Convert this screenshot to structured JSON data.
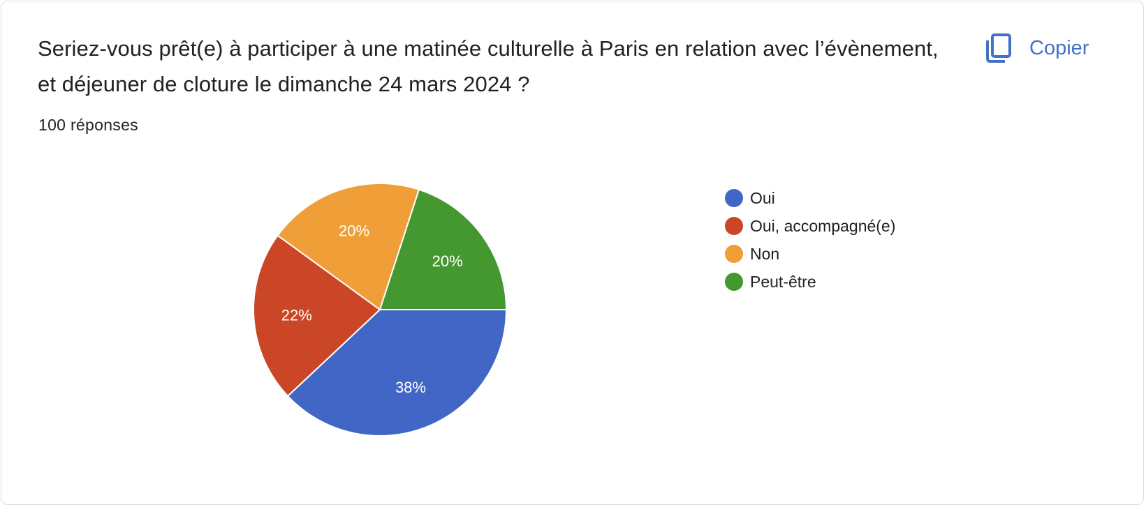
{
  "question": "Seriez-vous prêt(e) à participer à une matinée culturelle à Paris en relation avec l’évènement, et déjeuner de cloture le dimanche 24 mars 2024 ?",
  "response_count": "100 réponses",
  "copy_button": {
    "label": "Copier",
    "icon": "copy-icon"
  },
  "colors": {
    "accent": "#4470c8"
  },
  "chart_data": {
    "type": "pie",
    "categories": [
      "Oui",
      "Oui, accompagné(e)",
      "Non",
      "Peut-être"
    ],
    "values": [
      38,
      22,
      20,
      20
    ],
    "unit": "%",
    "labels": [
      "38%",
      "22%",
      "20%",
      "20%"
    ],
    "colors": [
      "#4166c6",
      "#cb4627",
      "#f09e38",
      "#45982f"
    ],
    "start": "3 o'clock",
    "direction": "clockwise",
    "legend_position": "right"
  }
}
